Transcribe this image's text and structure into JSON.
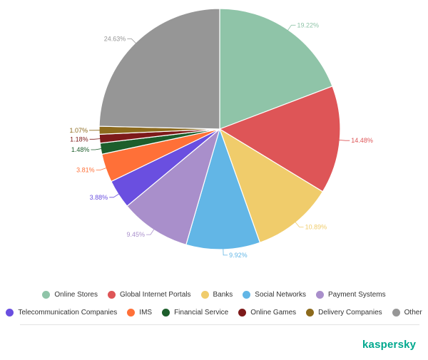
{
  "chart_data": {
    "type": "pie",
    "categories": [
      "Online Stores",
      "Global Internet Portals",
      "Banks",
      "Social Networks",
      "Payment Systems",
      "Telecommunication Companies",
      "IMS",
      "Financial Service",
      "Online Games",
      "Delivery Companies",
      "Other"
    ],
    "values": [
      19.22,
      14.48,
      10.89,
      9.92,
      9.45,
      3.88,
      3.81,
      1.48,
      1.18,
      1.07,
      24.63
    ],
    "labels": [
      "19.22%",
      "14.48%",
      "10.89%",
      "9.92%",
      "9.45%",
      "3.88%",
      "3.81%",
      "1.48%",
      "1.18%",
      "1.07%",
      "24.63%"
    ],
    "colors": [
      "#8fc4a8",
      "#de5557",
      "#f0cc6b",
      "#62b6e6",
      "#a98fcb",
      "#6a4fe0",
      "#ff7038",
      "#1d5e2c",
      "#7d1a1a",
      "#8c6a1c",
      "#969696"
    ],
    "legend_placement": "bottom"
  },
  "legend": {
    "rows": [
      [
        {
          "label": "Online Stores",
          "color": "#8fc4a8"
        },
        {
          "label": "Global Internet Portals",
          "color": "#de5557"
        },
        {
          "label": "Banks",
          "color": "#f0cc6b"
        },
        {
          "label": "Social Networks",
          "color": "#62b6e6"
        },
        {
          "label": "Payment Systems",
          "color": "#a98fcb"
        }
      ],
      [
        {
          "label": "Telecommunication Companies",
          "color": "#6a4fe0"
        },
        {
          "label": "IMS",
          "color": "#ff7038"
        },
        {
          "label": "Financial Service",
          "color": "#1d5e2c"
        },
        {
          "label": "Online Games",
          "color": "#7d1a1a"
        },
        {
          "label": "Delivery Companies",
          "color": "#8c6a1c"
        },
        {
          "label": "Other",
          "color": "#969696"
        }
      ]
    ]
  },
  "brand": {
    "name": "kaspersky"
  }
}
